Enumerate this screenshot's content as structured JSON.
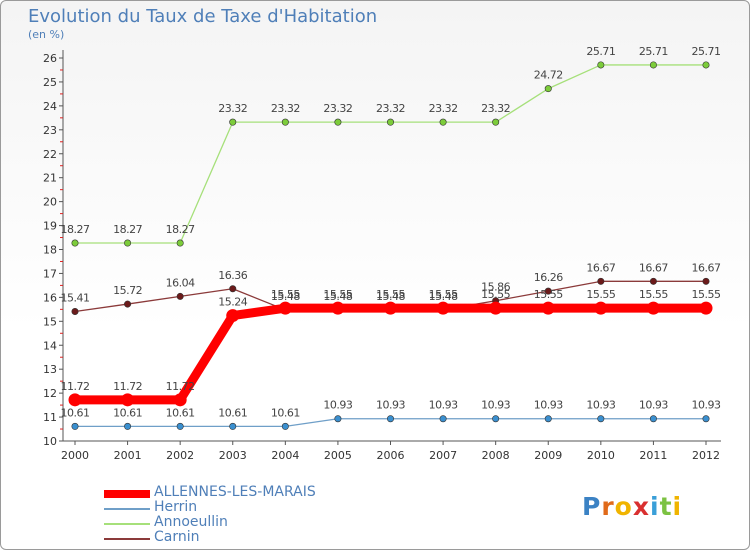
{
  "chart_data": {
    "type": "line",
    "title": "Evolution du Taux de Taxe d'Habitation",
    "unit_label": "(en %)",
    "xlabel": "",
    "ylabel": "",
    "categories": [
      "2000",
      "2001",
      "2002",
      "2003",
      "2004",
      "2005",
      "2006",
      "2007",
      "2008",
      "2009",
      "2010",
      "2011",
      "2012"
    ],
    "ylim": [
      10,
      26
    ],
    "yticks": [
      "10",
      "11",
      "12",
      "13",
      "14",
      "15",
      "16",
      "17",
      "18",
      "19",
      "20",
      "21",
      "22",
      "23",
      "24",
      "25",
      "26"
    ],
    "grid": false,
    "legend_position": "bottom-left",
    "series": [
      {
        "name": "ALLENNES-LES-MARAIS",
        "color": "#ff0000",
        "line_color": "#ff0000",
        "marker_color": "#ff0000",
        "label_color": "#444444",
        "emphasis": "bold",
        "values": [
          11.72,
          11.72,
          11.72,
          15.24,
          15.55,
          15.55,
          15.55,
          15.55,
          15.55,
          15.55,
          15.55,
          15.55,
          15.55
        ],
        "labels": [
          "11.72",
          "11.72",
          "11.72",
          "15.24",
          "15.55",
          "15.55",
          "15.55",
          "15.55",
          "15.55",
          "15.55",
          "15.55",
          "15.55",
          "15.55"
        ]
      },
      {
        "name": "Herrin",
        "color": "#6f9fc8",
        "line_color": "#6f9fc8",
        "marker_color": "#3a8fcf",
        "label_color": "#444444",
        "emphasis": "normal",
        "values": [
          10.61,
          10.61,
          10.61,
          10.61,
          10.61,
          10.93,
          10.93,
          10.93,
          10.93,
          10.93,
          10.93,
          10.93,
          10.93
        ],
        "labels": [
          "10.61",
          "10.61",
          "10.61",
          "10.61",
          "10.61",
          "10.93",
          "10.93",
          "10.93",
          "10.93",
          "10.93",
          "10.93",
          "10.93",
          "10.93"
        ]
      },
      {
        "name": "Annoeullin",
        "color": "#a6e07a",
        "line_color": "#a6e07a",
        "marker_color": "#7ccc3a",
        "label_color": "#444444",
        "emphasis": "normal",
        "values": [
          18.27,
          18.27,
          18.27,
          23.32,
          23.32,
          23.32,
          23.32,
          23.32,
          23.32,
          24.72,
          25.71,
          25.71,
          25.71
        ],
        "labels": [
          "18.27",
          "18.27",
          "18.27",
          "23.32",
          "23.32",
          "23.32",
          "23.32",
          "23.32",
          "23.32",
          "24.72",
          "25.71",
          "25.71",
          "25.71"
        ]
      },
      {
        "name": "Carnin",
        "color": "#8b3a3a",
        "line_color": "#8b3a3a",
        "marker_color": "#6b1a1a",
        "label_color": "#444444",
        "emphasis": "normal",
        "values": [
          15.41,
          15.72,
          16.04,
          16.36,
          15.48,
          15.48,
          15.48,
          15.48,
          15.86,
          16.26,
          16.67,
          16.67,
          16.67
        ],
        "labels": [
          "15.41",
          "15.72",
          "16.04",
          "16.36",
          "15.48",
          "15.48",
          "15.48",
          "15.48",
          "15.86",
          "16.26",
          "16.67",
          "16.67",
          "16.67"
        ]
      }
    ]
  },
  "brand": {
    "letters": [
      "P",
      "r",
      "o",
      "x",
      "i",
      "t",
      "i"
    ],
    "colors": [
      "#3b82c4",
      "#e06a1a",
      "#f0b400",
      "#d93030",
      "#3a9fd8",
      "#7cc242",
      "#f0b400"
    ]
  }
}
